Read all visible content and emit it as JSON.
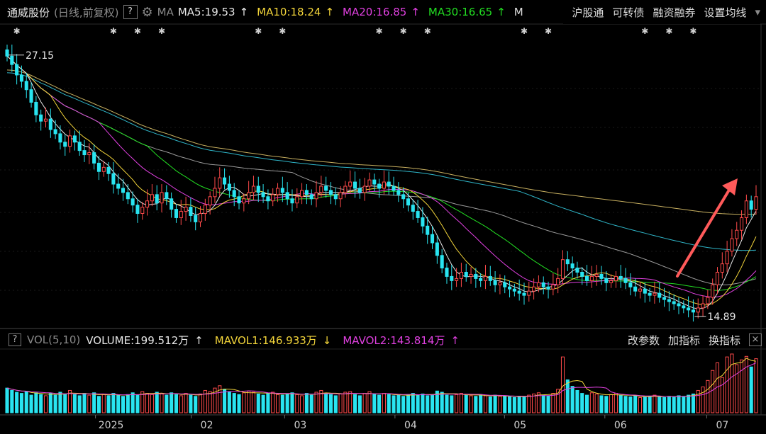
{
  "header": {
    "stock_name": "通威股份",
    "period": "(日线,前复权)",
    "help": "?",
    "ma_label": "MA",
    "ma5": "MA5:19.53",
    "ma10": "MA10:18.24",
    "ma20": "MA20:16.85",
    "ma30": "MA30:16.65",
    "ma_more": "M",
    "links": [
      "沪股通",
      "可转债",
      "融资融券",
      "设置均线"
    ],
    "dropdown": "▾",
    "arrow_up": "↑",
    "arrow_down": "↓"
  },
  "volume_header": {
    "help": "?",
    "label": "VOL(5,10)",
    "volume": "VOLUME:199.512万",
    "mavol1": "MAVOL1:146.933万",
    "mavol2": "MAVOL2:143.814万",
    "links": [
      "改参数",
      "加指标",
      "换指标"
    ],
    "close": "×"
  },
  "colors": {
    "up": "#ff4a4a",
    "down": "#29e4f0",
    "ma5": "#e8e8e8",
    "ma10": "#f2d43a",
    "ma20": "#e040e0",
    "ma30": "#22dd22",
    "ma60": "#9a9a9a",
    "ma120": "#2fb6c9",
    "ma250": "#c8b060",
    "arrow": "#ff5a5a"
  },
  "chart_data": {
    "type": "candlestick",
    "price_max": "27.15",
    "price_min": "14.89",
    "x_labels": [
      "2025",
      "02",
      "03",
      "04",
      "05",
      "06",
      "07"
    ],
    "x_label_positions": [
      0.145,
      0.27,
      0.392,
      0.536,
      0.679,
      0.81,
      0.943
    ],
    "closes": [
      27.1,
      26.7,
      26.2,
      25.9,
      25.5,
      24.9,
      24.3,
      24.0,
      24.1,
      23.6,
      23.4,
      23.0,
      22.8,
      23.3,
      23.0,
      22.6,
      22.4,
      22.5,
      22.0,
      21.6,
      21.8,
      21.5,
      21.0,
      20.8,
      20.6,
      20.3,
      20.0,
      19.6,
      19.9,
      20.2,
      20.5,
      20.1,
      20.6,
      20.3,
      19.8,
      19.4,
      19.7,
      19.9,
      19.5,
      19.2,
      19.6,
      20.0,
      20.4,
      20.8,
      21.3,
      21.0,
      20.7,
      20.4,
      20.1,
      20.3,
      20.6,
      20.9,
      20.6,
      20.4,
      20.2,
      20.5,
      20.8,
      20.6,
      20.3,
      20.1,
      20.4,
      20.7,
      20.5,
      20.3,
      20.6,
      20.9,
      20.7,
      20.5,
      20.3,
      20.6,
      20.9,
      21.1,
      20.8,
      20.6,
      20.9,
      21.2,
      21.0,
      20.8,
      21.1,
      20.9,
      20.7,
      20.5,
      20.3,
      20.0,
      19.7,
      19.4,
      19.0,
      18.6,
      18.2,
      17.6,
      17.0,
      16.6,
      16.4,
      16.5,
      16.8,
      16.6,
      16.7,
      16.5,
      16.4,
      16.6,
      16.4,
      16.2,
      16.3,
      16.1,
      16.0,
      15.9,
      15.8,
      15.7,
      15.9,
      16.1,
      16.3,
      16.1,
      16.0,
      16.2,
      16.5,
      17.4,
      17.2,
      17.0,
      16.8,
      16.6,
      16.4,
      16.6,
      16.7,
      16.5,
      16.3,
      16.4,
      16.6,
      16.5,
      16.3,
      16.1,
      15.9,
      16.0,
      15.8,
      15.7,
      15.8,
      15.6,
      15.5,
      15.4,
      15.3,
      15.2,
      15.1,
      15.0,
      14.9,
      15.1,
      15.3,
      15.6,
      16.2,
      16.8,
      17.2,
      17.8,
      18.4,
      18.8,
      19.4,
      20.2,
      19.8,
      20.4
    ],
    "volumes": [
      0.42,
      0.38,
      0.35,
      0.33,
      0.36,
      0.3,
      0.34,
      0.31,
      0.29,
      0.33,
      0.3,
      0.35,
      0.32,
      0.38,
      0.31,
      0.29,
      0.33,
      0.3,
      0.34,
      0.28,
      0.31,
      0.29,
      0.33,
      0.3,
      0.28,
      0.31,
      0.34,
      0.3,
      0.36,
      0.33,
      0.31,
      0.35,
      0.32,
      0.3,
      0.34,
      0.31,
      0.29,
      0.33,
      0.3,
      0.28,
      0.32,
      0.38,
      0.36,
      0.42,
      0.46,
      0.4,
      0.36,
      0.33,
      0.31,
      0.34,
      0.37,
      0.35,
      0.32,
      0.3,
      0.33,
      0.35,
      0.31,
      0.3,
      0.32,
      0.34,
      0.31,
      0.29,
      0.33,
      0.3,
      0.35,
      0.38,
      0.33,
      0.31,
      0.29,
      0.32,
      0.35,
      0.36,
      0.31,
      0.29,
      0.33,
      0.36,
      0.32,
      0.3,
      0.33,
      0.31,
      0.29,
      0.3,
      0.28,
      0.31,
      0.33,
      0.3,
      0.32,
      0.29,
      0.31,
      0.37,
      0.35,
      0.3,
      0.29,
      0.31,
      0.33,
      0.3,
      0.29,
      0.28,
      0.31,
      0.29,
      0.27,
      0.3,
      0.28,
      0.29,
      0.27,
      0.26,
      0.28,
      0.27,
      0.3,
      0.32,
      0.34,
      0.3,
      0.29,
      0.33,
      0.4,
      0.95,
      0.56,
      0.45,
      0.38,
      0.33,
      0.3,
      0.34,
      0.32,
      0.29,
      0.28,
      0.31,
      0.33,
      0.3,
      0.28,
      0.27,
      0.29,
      0.26,
      0.27,
      0.28,
      0.3,
      0.27,
      0.26,
      0.28,
      0.27,
      0.29,
      0.28,
      0.3,
      0.32,
      0.38,
      0.44,
      0.55,
      0.72,
      0.85,
      0.6,
      0.95,
      1.0,
      0.82,
      0.9,
      0.96,
      0.78,
      0.92
    ]
  }
}
